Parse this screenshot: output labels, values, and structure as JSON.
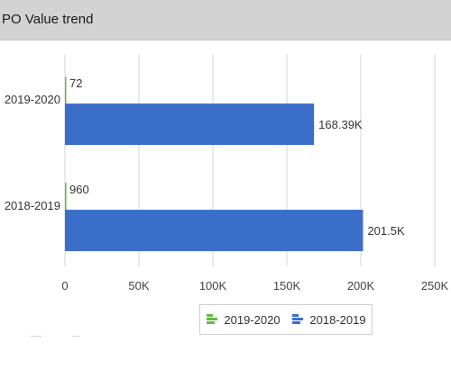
{
  "header": {
    "title": "PO Value trend"
  },
  "chart_data": {
    "type": "bar",
    "orientation": "horizontal",
    "title": "PO Value trend",
    "xlabel": "",
    "ylabel": "",
    "categories": [
      "2019-2020",
      "2018-2019"
    ],
    "xlim": [
      0,
      250000
    ],
    "x_ticks": [
      0,
      50000,
      100000,
      150000,
      200000,
      250000
    ],
    "x_tick_labels": [
      "0",
      "50K",
      "100K",
      "150K",
      "200K",
      "250K"
    ],
    "grid": true,
    "legend_position": "bottom",
    "series": [
      {
        "name": "2019-2020",
        "color": "#66bb45",
        "values": [
          72,
          960
        ],
        "labels": [
          "72",
          "960"
        ]
      },
      {
        "name": "2018-2019",
        "color": "#3b6ec9",
        "values": [
          168390,
          201500
        ],
        "labels": [
          "168.39K",
          "201.5K"
        ]
      }
    ]
  },
  "legend": {
    "items": [
      {
        "label": "2019-2020",
        "color": "#66bb45",
        "icon": "bar-legend-icon"
      },
      {
        "label": "2018-2019",
        "color": "#3b6ec9",
        "icon": "bar-legend-icon"
      }
    ]
  }
}
